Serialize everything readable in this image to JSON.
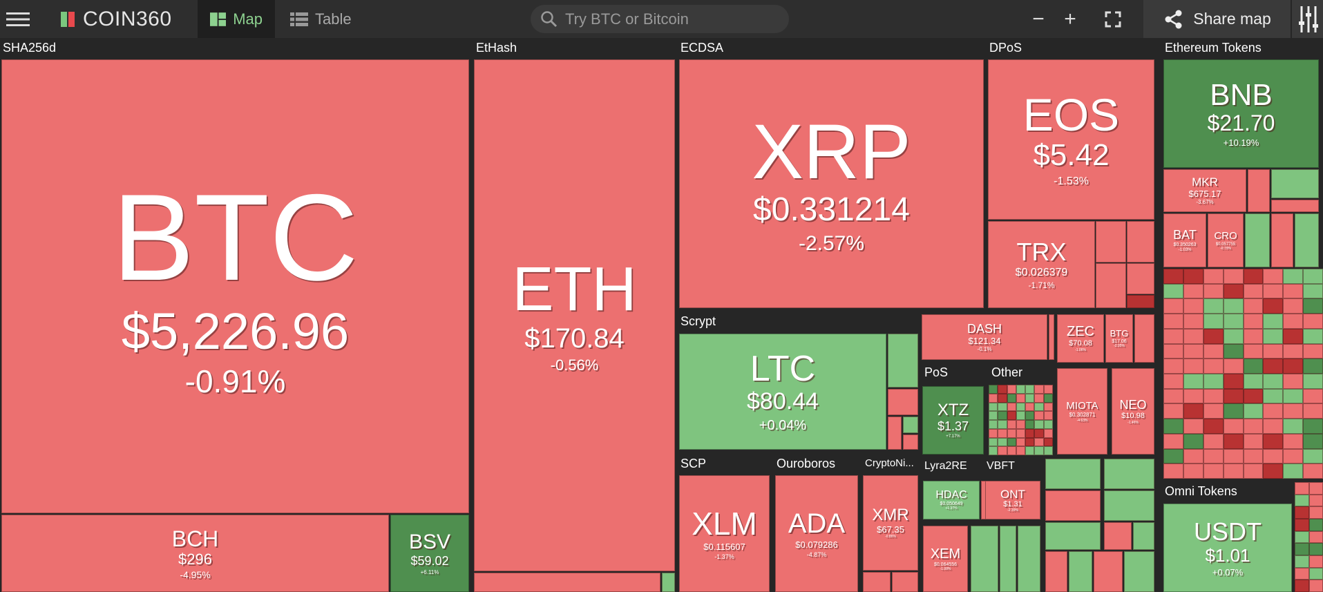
{
  "topbar": {
    "logo": "COIN360",
    "tabs": [
      {
        "label": "Map"
      },
      {
        "label": "Table"
      }
    ],
    "search_placeholder": "Try BTC or Bitcoin",
    "share_label": "Share map"
  },
  "groups": {
    "sha": "SHA256d",
    "ethash": "EtHash",
    "ecdsa": "ECDSA",
    "dpos": "DPoS",
    "eth_tokens": "Ethereum Tokens",
    "scrypt": "Scrypt",
    "pos": "PoS",
    "other": "Other",
    "scp": "SCP",
    "ouro": "Ouroboros",
    "crypto": "CryptoNi...",
    "lyra": "Lyra2RE",
    "vbft": "VBFT",
    "omni": "Omni Tokens"
  },
  "coins": {
    "btc": {
      "symbol": "BTC",
      "price": "$5,226.96",
      "change": "-0.91%"
    },
    "bch": {
      "symbol": "BCH",
      "price": "$296",
      "change": "-4.95%"
    },
    "bsv": {
      "symbol": "BSV",
      "price": "$59.02",
      "change": "+6.11%"
    },
    "eth": {
      "symbol": "ETH",
      "price": "$170.84",
      "change": "-0.56%"
    },
    "xrp": {
      "symbol": "XRP",
      "price": "$0.331214",
      "change": "-2.57%"
    },
    "eos": {
      "symbol": "EOS",
      "price": "$5.42",
      "change": "-1.53%"
    },
    "trx": {
      "symbol": "TRX",
      "price": "$0.026379",
      "change": "-1.71%"
    },
    "bnb": {
      "symbol": "BNB",
      "price": "$21.70",
      "change": "+10.19%"
    },
    "mkr": {
      "symbol": "MKR",
      "price": "$675.17",
      "change": "-3.67%"
    },
    "bat": {
      "symbol": "BAT",
      "price": "$0.350263",
      "change": "-1.03%"
    },
    "cro": {
      "symbol": "CRO",
      "price": "$0.057755",
      "change": "-0.79%"
    },
    "ltc": {
      "symbol": "LTC",
      "price": "$80.44",
      "change": "+0.04%"
    },
    "dash": {
      "symbol": "DASH",
      "price": "$121.34",
      "change": "-0.1%"
    },
    "zec": {
      "symbol": "ZEC",
      "price": "$70.08",
      "change": "-1.06%"
    },
    "btg": {
      "symbol": "BTG",
      "price": "$17.06",
      "change": "-2.05%"
    },
    "xtz": {
      "symbol": "XTZ",
      "price": "$1.37",
      "change": "+7.17%"
    },
    "miota": {
      "symbol": "MIOTA",
      "price": "$0.302871",
      "change": "-4.63%"
    },
    "neo": {
      "symbol": "NEO",
      "price": "$10.98",
      "change": "-1.46%"
    },
    "xlm": {
      "symbol": "XLM",
      "price": "$0.115607",
      "change": "-1.37%"
    },
    "ada": {
      "symbol": "ADA",
      "price": "$0.079286",
      "change": "-4.87%"
    },
    "xmr": {
      "symbol": "XMR",
      "price": "$67.35",
      "change": "-0.86%"
    },
    "hdac": {
      "symbol": "HDAC",
      "price": "$0.050649",
      "change": "+1.37%"
    },
    "ont": {
      "symbol": "ONT",
      "price": "$1.31",
      "change": "-2.39%"
    },
    "xem": {
      "symbol": "XEM",
      "price": "$0.064556",
      "change": "-1.08%"
    },
    "usdt": {
      "symbol": "USDT",
      "price": "$1.01",
      "change": "+0.07%"
    }
  },
  "colors": {
    "red": "#ec7070",
    "green": "#7fc47f",
    "dark_green": "#4f8f4f",
    "dark_red": "#b83232",
    "background": "#262626"
  },
  "icons": [
    "menu-icon",
    "logo-icon",
    "map-icon",
    "table-icon",
    "search-icon",
    "zoom-out-icon",
    "zoom-in-icon",
    "fullscreen-icon",
    "share-icon",
    "filter-icon"
  ]
}
